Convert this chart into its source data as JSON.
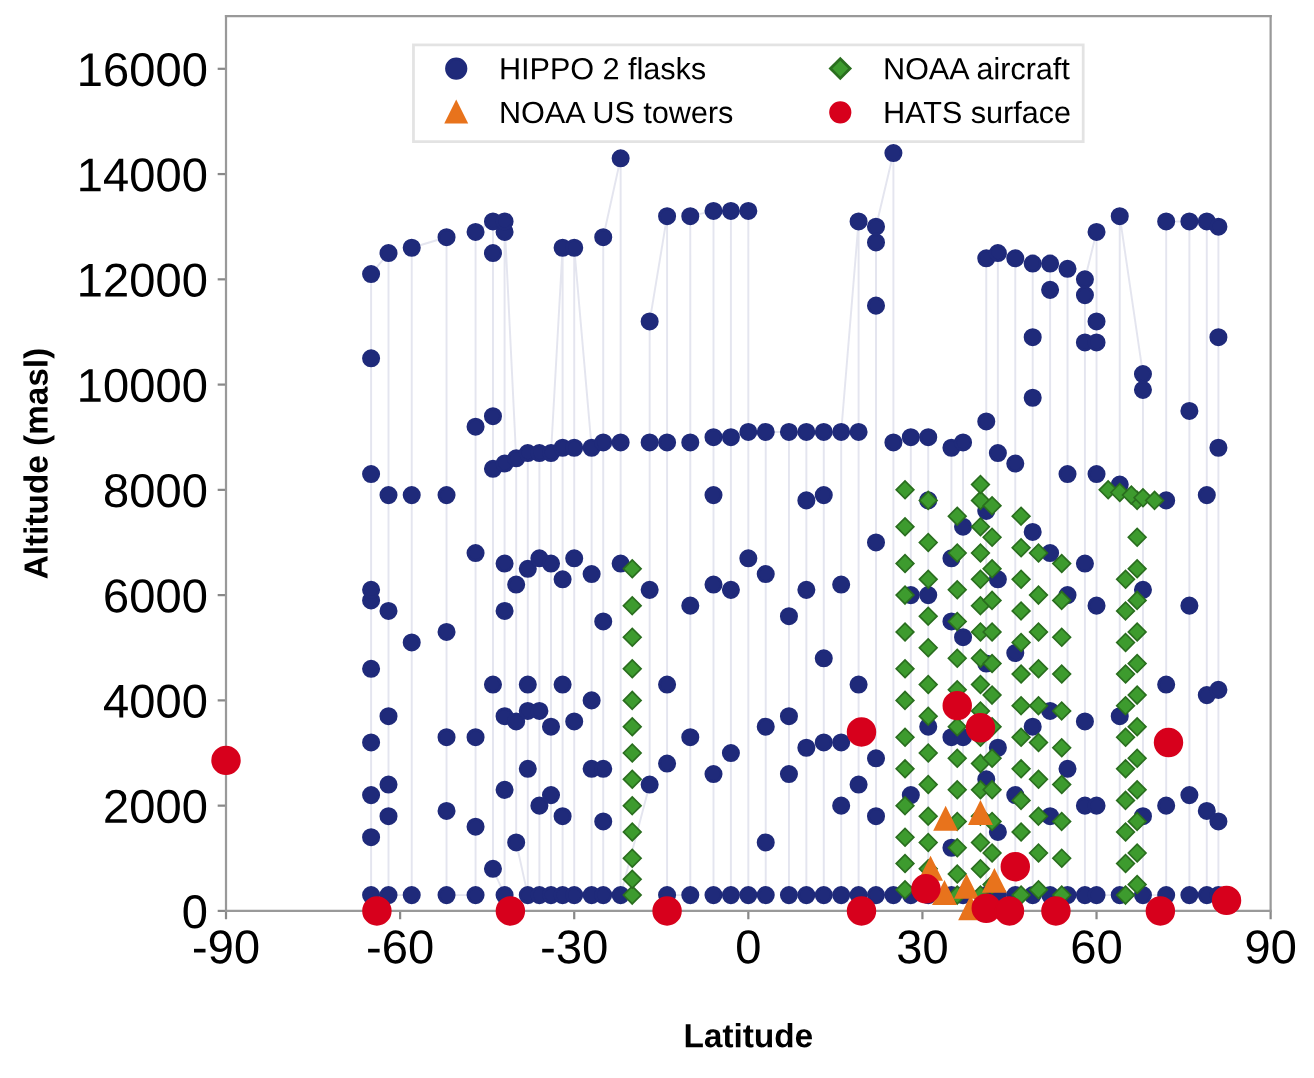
{
  "chart_data": {
    "type": "scatter",
    "xlabel": "Latitude",
    "ylabel": "Altitude (masl)",
    "xlim": [
      -90,
      90
    ],
    "ylim": [
      0,
      17000
    ],
    "xticks": [
      -90,
      -60,
      -30,
      0,
      30,
      60,
      90
    ],
    "yticks": [
      0,
      2000,
      4000,
      6000,
      8000,
      10000,
      12000,
      14000,
      16000
    ],
    "grid": false,
    "legend": "top",
    "series": [
      {
        "name": "HIPPO 2 flasks",
        "type": "line",
        "marker": "circle",
        "color": "#1f2a7a",
        "x": [
          -65,
          -65,
          -65,
          -65,
          -65,
          -65,
          -65,
          -65,
          -65,
          -65,
          -62,
          -62,
          -62,
          -62,
          -62,
          -62,
          -62,
          -58,
          -58,
          -58,
          -58,
          -52,
          -52,
          -52,
          -52,
          -52,
          -52,
          -47,
          -47,
          -47,
          -47,
          -47,
          -47,
          -44,
          -44,
          -44,
          -44,
          -44,
          -44,
          -42,
          -42,
          -42,
          -42,
          -42,
          -42,
          -42,
          -42,
          -40,
          -40,
          -40,
          -40,
          -38,
          -38,
          -38,
          -38,
          -38,
          -38,
          -36,
          -36,
          -36,
          -36,
          -36,
          -34,
          -34,
          -34,
          -34,
          -34,
          -32,
          -32,
          -32,
          -32,
          -32,
          -32,
          -30,
          -30,
          -30,
          -30,
          -30,
          -27,
          -27,
          -27,
          -27,
          -27,
          -25,
          -25,
          -25,
          -25,
          -25,
          -25,
          -22,
          -22,
          -22,
          -22,
          -17,
          -17,
          -17,
          -17,
          -14,
          -14,
          -14,
          -14,
          -14,
          -10,
          -10,
          -10,
          -10,
          -10,
          -6,
          -6,
          -6,
          -6,
          -6,
          -6,
          -3,
          -3,
          -3,
          -3,
          -3,
          0,
          0,
          0,
          0,
          3,
          3,
          3,
          3,
          3,
          7,
          7,
          7,
          7,
          7,
          10,
          10,
          10,
          10,
          10,
          13,
          13,
          13,
          13,
          13,
          16,
          16,
          16,
          16,
          16,
          19,
          19,
          19,
          19,
          19,
          22,
          22,
          22,
          22,
          22,
          22,
          22,
          25,
          25,
          25,
          28,
          28,
          28,
          28,
          31,
          31,
          31,
          31,
          31,
          35,
          35,
          35,
          35,
          35,
          35,
          37,
          37,
          37,
          37,
          37,
          41,
          41,
          41,
          41,
          41,
          41,
          43,
          43,
          43,
          43,
          43,
          43,
          46,
          46,
          46,
          46,
          46,
          49,
          49,
          49,
          49,
          49,
          49,
          52,
          52,
          52,
          52,
          52,
          52,
          55,
          55,
          55,
          55,
          55,
          58,
          58,
          58,
          58,
          58,
          58,
          58,
          60,
          60,
          60,
          60,
          60,
          60,
          60,
          64,
          64,
          64,
          64,
          68,
          68,
          68,
          68,
          68,
          72,
          72,
          72,
          72,
          72,
          76,
          76,
          76,
          76,
          76,
          79,
          79,
          79,
          79,
          79,
          81,
          81,
          81,
          81,
          81,
          81
        ],
        "values": [
          300,
          1400,
          2200,
          3200,
          4600,
          5900,
          6100,
          8300,
          10500,
          12100,
          12500,
          7900,
          5700,
          3700,
          2400,
          1800,
          300,
          300,
          5100,
          7900,
          12600,
          12800,
          7900,
          5300,
          3300,
          1900,
          300,
          300,
          1600,
          3300,
          6800,
          9200,
          12900,
          13100,
          12500,
          9400,
          8400,
          4300,
          800,
          300,
          2300,
          3700,
          5700,
          6600,
          8500,
          12900,
          13100,
          8600,
          6200,
          3600,
          1300,
          300,
          2700,
          3800,
          4300,
          6500,
          8700,
          8700,
          6700,
          3800,
          2000,
          300,
          300,
          2200,
          3500,
          6600,
          8700,
          12600,
          8800,
          6300,
          4300,
          1800,
          300,
          300,
          3600,
          6700,
          8800,
          12600,
          8800,
          6400,
          4000,
          2700,
          300,
          300,
          1700,
          2700,
          5500,
          8900,
          12800,
          14300,
          8900,
          6600,
          300,
          2400,
          6100,
          8900,
          11200,
          13200,
          8900,
          4300,
          2800,
          300,
          300,
          3300,
          5800,
          8900,
          13200,
          13300,
          9000,
          7900,
          6200,
          2600,
          300,
          300,
          3000,
          6100,
          9000,
          13300,
          13300,
          9100,
          6700,
          300,
          300,
          1300,
          3500,
          6400,
          9100,
          9100,
          5600,
          3700,
          2600,
          300,
          300,
          3100,
          6100,
          7800,
          9100,
          9100,
          7900,
          4800,
          3200,
          300,
          300,
          2000,
          3200,
          6200,
          9100,
          13100,
          9100,
          4300,
          2400,
          300,
          300,
          1800,
          2900,
          7000,
          11500,
          12700,
          13000,
          14400,
          8900,
          300,
          300,
          2200,
          6000,
          9000,
          9000,
          7800,
          6000,
          3500,
          300,
          300,
          1200,
          3300,
          5500,
          6700,
          8800,
          8900,
          7300,
          5200,
          3300,
          300,
          300,
          2500,
          4700,
          7600,
          9300,
          12400,
          12500,
          8700,
          6300,
          3100,
          1500,
          300,
          300,
          2200,
          4900,
          8500,
          12400,
          12300,
          10900,
          9750,
          7200,
          3500,
          300,
          300,
          1800,
          3800,
          6800,
          11800,
          12300,
          12200,
          8300,
          6000,
          2700,
          300,
          300,
          2000,
          3600,
          6600,
          10800,
          11700,
          12000,
          12900,
          11200,
          10800,
          8300,
          5800,
          2000,
          300,
          300,
          3700,
          8100,
          13200,
          10200,
          9900,
          6100,
          1800,
          300,
          300,
          2000,
          4300,
          7800,
          13100,
          13100,
          9500,
          5800,
          2200,
          300,
          300,
          1900,
          4100,
          7900,
          13100,
          13000,
          10900,
          8800,
          4200,
          1700,
          300
        ]
      },
      {
        "name": "NOAA aircraft",
        "marker": "diamond",
        "color": "#3d9b2e",
        "x": [
          -20,
          -20,
          -20,
          -20,
          -20,
          -20,
          -20,
          -20,
          -20,
          -20,
          -20,
          -20,
          -20,
          27,
          27,
          27,
          27,
          27,
          27,
          27,
          27,
          27,
          27,
          27,
          27,
          27,
          31,
          31,
          31,
          31,
          31,
          31,
          31,
          31,
          31,
          31,
          31,
          31,
          36,
          36,
          36,
          36,
          36,
          36,
          36,
          36,
          36,
          36,
          36,
          36,
          36,
          40,
          40,
          40,
          40,
          40,
          40,
          40,
          40,
          40,
          40,
          40,
          40,
          40,
          40,
          40,
          40,
          40,
          42,
          42,
          42,
          42,
          42,
          42,
          42,
          42,
          42,
          42,
          42,
          42,
          42,
          47,
          47,
          47,
          47,
          47,
          47,
          47,
          47,
          47,
          47,
          47,
          47,
          50,
          50,
          50,
          50,
          50,
          50,
          50,
          50,
          50,
          50,
          54,
          54,
          54,
          54,
          54,
          54,
          54,
          54,
          54,
          54,
          65,
          65,
          65,
          65,
          65,
          65,
          65,
          65,
          65,
          65,
          65,
          67,
          67,
          67,
          67,
          67,
          67,
          67,
          67,
          67,
          67,
          67,
          67,
          67,
          62,
          64,
          66,
          68,
          70
        ],
        "values": [
          300,
          600,
          1000,
          1500,
          2000,
          2500,
          3000,
          3500,
          4000,
          4600,
          5200,
          5800,
          6500,
          400,
          900,
          1400,
          2000,
          2700,
          3300,
          4000,
          4600,
          5300,
          6000,
          6600,
          7300,
          8000,
          800,
          1300,
          1800,
          2400,
          3000,
          3700,
          4300,
          5000,
          5600,
          6300,
          7000,
          7800,
          300,
          700,
          1200,
          1700,
          2300,
          2900,
          3500,
          4200,
          4800,
          5500,
          6100,
          6800,
          7500,
          300,
          800,
          1300,
          1800,
          2300,
          2800,
          3300,
          3800,
          4300,
          4800,
          5300,
          5800,
          6300,
          6800,
          7300,
          7800,
          8100,
          500,
          1100,
          1700,
          2300,
          2900,
          3500,
          4100,
          4700,
          5300,
          5900,
          6500,
          7100,
          7700,
          300,
          1500,
          2100,
          2700,
          3300,
          3900,
          4500,
          5100,
          5700,
          6300,
          6900,
          7500,
          400,
          1100,
          1800,
          2500,
          3200,
          3900,
          4600,
          5300,
          6000,
          6800,
          300,
          1000,
          1700,
          2400,
          3100,
          3800,
          4500,
          5200,
          5900,
          6600,
          300,
          900,
          1500,
          2100,
          2700,
          3300,
          3900,
          4500,
          5100,
          5700,
          6300,
          500,
          1100,
          1700,
          2300,
          2900,
          3500,
          4100,
          4700,
          5300,
          5900,
          6500,
          7100,
          7800,
          8000,
          7950,
          7900,
          7850,
          7800
        ]
      },
      {
        "name": "NOAA US towers",
        "marker": "triangle",
        "color": "#e8731c",
        "x": [
          34,
          40,
          31.4,
          33.8,
          37.6,
          42.4,
          38.3
        ],
        "values": [
          1750,
          1860,
          800,
          340,
          460,
          570,
          50
        ]
      },
      {
        "name": "HATS surface",
        "marker": "circle",
        "color": "#d7001c",
        "x": [
          -90,
          -64,
          -41,
          -14,
          19.5,
          19.5,
          30.6,
          36,
          40,
          46,
          41,
          45,
          53,
          71,
          82.4,
          72.4
        ],
        "values": [
          2860,
          0,
          0,
          0,
          0,
          3400,
          420,
          3900,
          3480,
          840,
          50,
          0,
          0,
          0,
          200,
          3200
        ]
      }
    ]
  }
}
